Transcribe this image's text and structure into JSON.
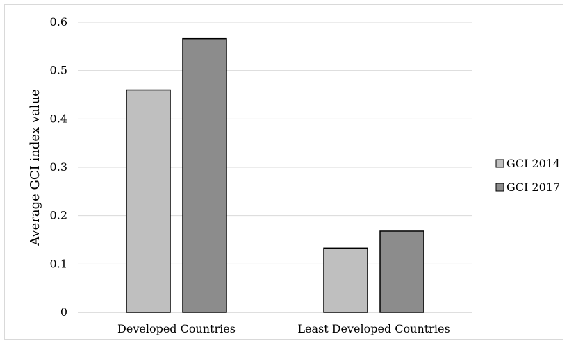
{
  "chart_data": {
    "type": "bar",
    "title": "",
    "xlabel": "",
    "ylabel": "Average GCI index value",
    "ylim": [
      0,
      0.6
    ],
    "yticks": [
      "0",
      "0.1",
      "0.2",
      "0.3",
      "0.4",
      "0.5",
      "0.6"
    ],
    "categories": [
      "Developed Countries",
      "Least Developed Countries"
    ],
    "series": [
      {
        "name": "GCI 2014",
        "values": [
          0.46,
          0.133
        ],
        "color": "#bfbfbf"
      },
      {
        "name": "GCI 2017",
        "values": [
          0.566,
          0.168
        ],
        "color": "#8c8c8c"
      }
    ],
    "grid": true,
    "legend": "right"
  }
}
